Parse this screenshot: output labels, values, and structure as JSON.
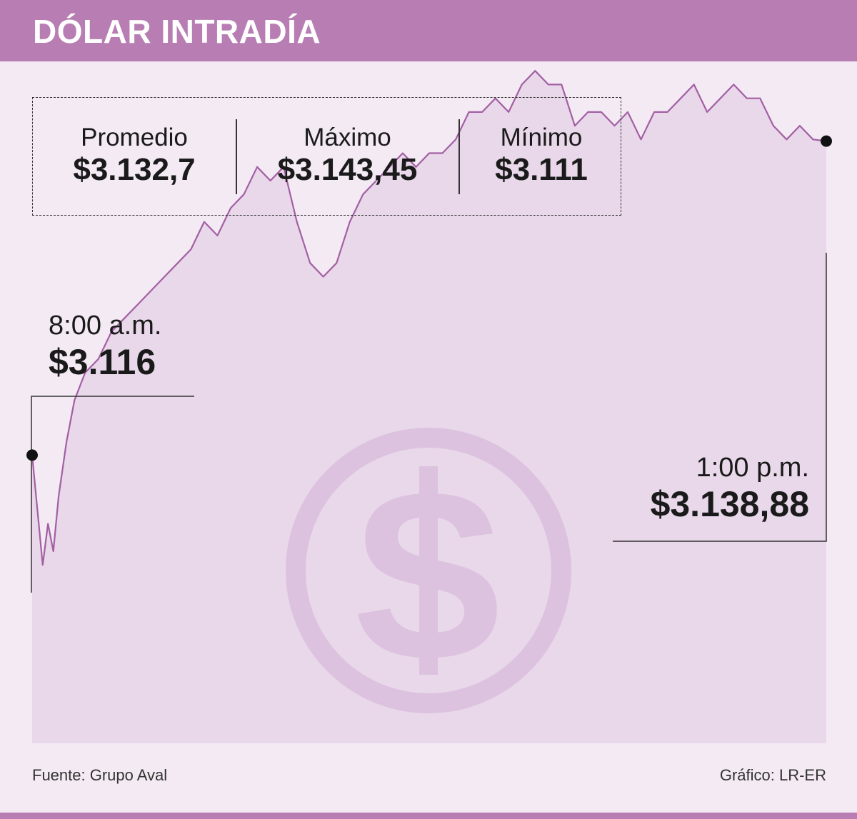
{
  "header": {
    "title": "DÓLAR INTRADÍA"
  },
  "stats": {
    "average": {
      "label": "Promedio",
      "value": "$3.132,7"
    },
    "max": {
      "label": "Máximo",
      "value": "$3.143,45"
    },
    "min": {
      "label": "Mínimo",
      "value": "$3.111"
    }
  },
  "callouts": {
    "open": {
      "time": "8:00 a.m.",
      "value": "$3.116"
    },
    "close": {
      "time": "1:00 p.m.",
      "value": "$3.138,88"
    }
  },
  "footer": {
    "source": "Fuente: Grupo Aval",
    "credit": "Gráfico: LR-ER"
  },
  "colors": {
    "header": "#b87db3",
    "background": "#f3eaf4",
    "area_fill": "#e8d8ea",
    "line": "#a35fa3",
    "watermark": "#dcc2df"
  },
  "watermark_icon": "dollar-coin-icon",
  "chart_data": {
    "type": "area",
    "title": "DÓLAR INTRADÍA",
    "xlabel": "",
    "ylabel": "",
    "x_start": "8:00 a.m.",
    "x_end": "1:00 p.m.",
    "xlim": [
      "8:00",
      "13:00"
    ],
    "ylim": [
      3095,
      3145
    ],
    "grid": false,
    "legend": "none",
    "series": [
      {
        "x": [
          "8:00",
          "8:02",
          "8:04",
          "8:06",
          "8:08",
          "8:10",
          "8:13",
          "8:16",
          "8:20",
          "8:25",
          "8:30",
          "8:35",
          "8:40",
          "8:45",
          "8:50",
          "8:55",
          "9:00",
          "9:05",
          "9:10",
          "9:15",
          "9:20",
          "9:25",
          "9:30",
          "9:35",
          "9:40",
          "9:45",
          "9:50",
          "9:55",
          "10:00",
          "10:05",
          "10:10",
          "10:15",
          "10:20",
          "10:25",
          "10:30",
          "10:35",
          "10:40",
          "10:45",
          "10:50",
          "10:55",
          "11:00",
          "11:05",
          "11:10",
          "11:15",
          "11:20",
          "11:25",
          "11:30",
          "11:35",
          "11:40",
          "11:45",
          "11:50",
          "11:55",
          "12:00",
          "12:05",
          "12:10",
          "12:15",
          "12:20",
          "12:25",
          "12:30",
          "12:35",
          "12:40",
          "12:45",
          "12:50",
          "12:55",
          "13:00"
        ],
        "values": [
          3116,
          3112,
          3108,
          3111,
          3109,
          3113,
          3117,
          3120,
          3122,
          3123,
          3125,
          3126,
          3127,
          3128,
          3129,
          3130,
          3131,
          3133,
          3132,
          3134,
          3135,
          3137,
          3136,
          3137,
          3133,
          3130,
          3129,
          3130,
          3133,
          3135,
          3136,
          3137,
          3138,
          3137,
          3138,
          3138,
          3139,
          3141,
          3141,
          3142,
          3141,
          3143,
          3144,
          3143,
          3143,
          3140,
          3141,
          3141,
          3140,
          3141,
          3139,
          3141,
          3141,
          3142,
          3143,
          3141,
          3142,
          3143,
          3142,
          3142,
          3140,
          3139,
          3140,
          3139,
          3138.88
        ]
      }
    ]
  }
}
